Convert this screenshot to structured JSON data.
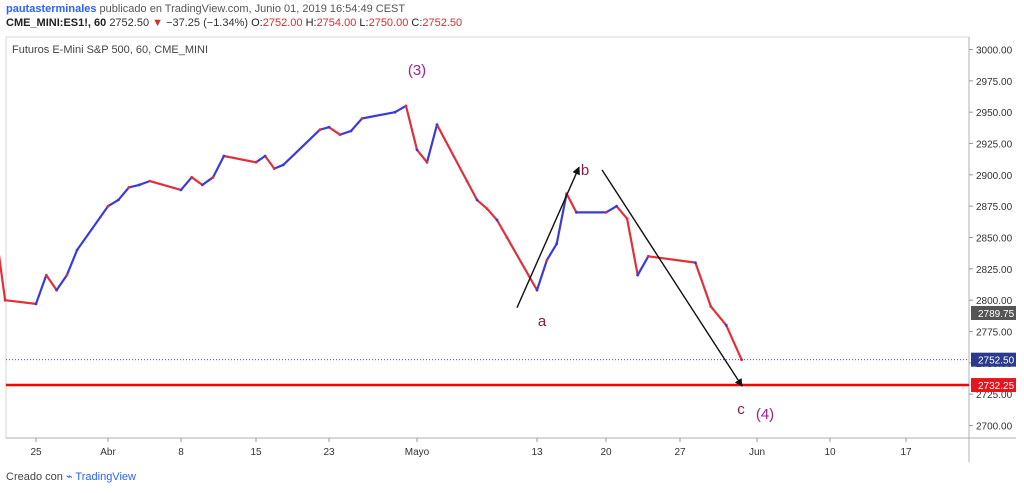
{
  "header": {
    "author": "pautasterminales",
    "published": "publicado en TradingView.com, Junio 01, 2019 16:54:49 CEST",
    "symbol": "CME_MINI:ES1!, 60",
    "last": "2752.50",
    "change": "−37.25 (−1.34%)",
    "o_label": "O:",
    "o": "2752.00",
    "h_label": "H:",
    "h": "2754.00",
    "l_label": "L:",
    "l": "2750.00",
    "c_label": "C:",
    "c": "2752.50"
  },
  "footer": {
    "created_with": "Creado con",
    "brand": "TradingView"
  },
  "colors": {
    "up": "#3b3bd6",
    "down": "#e0303a",
    "support": "#ff0000",
    "wave_label": "#8b1a4a",
    "wave_degree": "#a01e9a",
    "price_line": "#2b2bb0"
  },
  "chart_data": {
    "type": "line",
    "title": "Futuros E-Mini S&P 500, 60, CME_MINI",
    "ylim": [
      2690,
      3010
    ],
    "y_ticks": [
      2700,
      2725,
      2750,
      2775,
      2800,
      2825,
      2850,
      2875,
      2900,
      2925,
      2950,
      2975,
      3000
    ],
    "y_tick_labels": [
      "2700.00",
      "2725.00",
      "2750.00",
      "2775.00",
      "2800.00",
      "2825.00",
      "2850.00",
      "2875.00",
      "2900.00",
      "2925.00",
      "2950.00",
      "2975.00",
      "3000.00"
    ],
    "x_tick_labels": [
      "25",
      "Abr",
      "8",
      "15",
      "23",
      "Mayo",
      "13",
      "20",
      "27",
      "Jun",
      "10",
      "17"
    ],
    "x_tick_dates": [
      "2019-03-25",
      "2019-04-01",
      "2019-04-08",
      "2019-04-15",
      "2019-04-23",
      "2019-05-01",
      "2019-05-13",
      "2019-05-20",
      "2019-05-27",
      "2019-06-01",
      "2019-06-10",
      "2019-06-17"
    ],
    "series": [
      {
        "x": [
          "2019-03-21",
          "2019-03-22",
          "2019-03-25",
          "2019-03-26",
          "2019-03-27",
          "2019-03-28",
          "2019-03-29",
          "2019-04-01",
          "2019-04-02",
          "2019-04-03",
          "2019-04-04",
          "2019-04-05",
          "2019-04-08",
          "2019-04-09",
          "2019-04-10",
          "2019-04-11",
          "2019-04-12",
          "2019-04-15",
          "2019-04-16",
          "2019-04-17",
          "2019-04-18",
          "2019-04-22",
          "2019-04-23",
          "2019-04-24",
          "2019-04-25",
          "2019-04-26",
          "2019-04-29",
          "2019-04-30",
          "2019-05-01",
          "2019-05-02",
          "2019-05-03",
          "2019-05-06",
          "2019-05-07",
          "2019-05-08",
          "2019-05-09",
          "2019-05-10",
          "2019-05-13",
          "2019-05-14",
          "2019-05-15",
          "2019-05-16",
          "2019-05-17",
          "2019-05-20",
          "2019-05-21",
          "2019-05-22",
          "2019-05-23",
          "2019-05-24",
          "2019-05-28",
          "2019-05-29",
          "2019-05-30",
          "2019-05-31"
        ],
        "values": [
          2860,
          2800,
          2797,
          2820,
          2808,
          2820,
          2840,
          2875,
          2880,
          2890,
          2892,
          2895,
          2888,
          2898,
          2892,
          2898,
          2915,
          2910,
          2915,
          2905,
          2908,
          2936,
          2938,
          2932,
          2935,
          2945,
          2950,
          2955,
          2920,
          2910,
          2940,
          2895,
          2880,
          2873,
          2864,
          2850,
          2808,
          2832,
          2845,
          2885,
          2870,
          2870,
          2875,
          2865,
          2820,
          2835,
          2830,
          2795,
          2780,
          2752.5
        ]
      }
    ],
    "price_levels": [
      {
        "label": "2789.75",
        "value": 2789.75
      },
      {
        "label": "2752.50",
        "value": 2752.5
      },
      {
        "label": "2732.25",
        "value": 2732.25
      }
    ],
    "annotations": [
      "(3)",
      "a",
      "b",
      "c",
      "(4)"
    ]
  }
}
